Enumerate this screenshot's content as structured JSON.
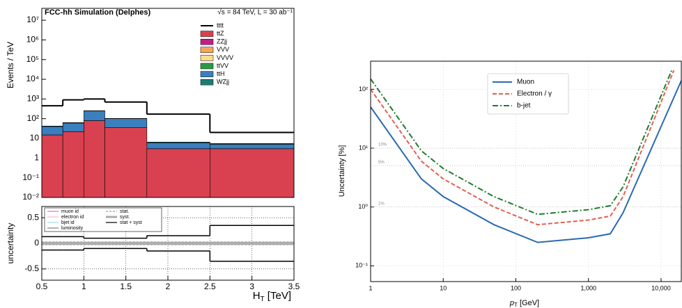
{
  "chart_data": [
    {
      "type": "histogram",
      "header_left": "FCC-hh Simulation (Delphes)",
      "header_right": "√s = 84 TeV, L = 30 ab⁻¹",
      "ylabel": "Events / TeV",
      "bins": [
        0.5,
        0.75,
        1,
        1.25,
        1.75,
        2.5,
        3.5
      ],
      "xlim": [
        0.5,
        3.5
      ],
      "ylog": true,
      "ylim": [
        0.01,
        40000000
      ],
      "yticks": [
        {
          "value": 0.01,
          "label": "10⁻²"
        },
        {
          "value": 0.1,
          "label": "10⁻¹"
        },
        1,
        10,
        {
          "value": 100,
          "label": "10²"
        },
        {
          "value": 1000,
          "label": "10³"
        },
        {
          "value": 10000,
          "label": "10⁴"
        },
        {
          "value": 100000,
          "label": "10⁵"
        },
        {
          "value": 1000000,
          "label": "10⁶"
        },
        {
          "value": 10000000,
          "label": "10⁷"
        }
      ],
      "stacked": true,
      "legend": "upper right",
      "series": [
        {
          "name": "tttt",
          "color": "#000000",
          "histtype": "step",
          "values": [
            450,
            900,
            1000,
            700,
            170,
            20
          ]
        },
        {
          "name": "ttZ",
          "color": "#d94150",
          "values": [
            15,
            22,
            80,
            35,
            3,
            3
          ]
        },
        {
          "name": "ZZjj",
          "color": "#c21f88",
          "values": [
            0,
            0,
            0,
            0,
            0,
            0
          ]
        },
        {
          "name": "VVV",
          "color": "#f8a55b",
          "values": [
            0,
            0,
            0,
            0,
            0,
            0
          ]
        },
        {
          "name": "VVVV",
          "color": "#fddc8f",
          "values": [
            0,
            0,
            0,
            0,
            0,
            0
          ]
        },
        {
          "name": "ttVV",
          "color": "#2e9a48",
          "values": [
            0,
            0,
            0,
            0,
            0,
            0
          ]
        },
        {
          "name": "ttH",
          "color": "#3a7fbe",
          "values": [
            25,
            38,
            170,
            65,
            3,
            2
          ]
        },
        {
          "name": "WZjj",
          "color": "#1a7f72",
          "values": [
            2,
            3,
            5,
            3,
            0.5,
            0.5
          ]
        }
      ]
    },
    {
      "type": "ratio",
      "ylabel": "uncertainty",
      "xlabel": "H",
      "xlabel_sub": "T",
      "xlabel_unit": " [TeV]",
      "bins": [
        0.5,
        0.75,
        1,
        1.25,
        1.75,
        2.5,
        3.5
      ],
      "xlim": [
        0.5,
        3.5
      ],
      "xticks": [
        0.5,
        1,
        1.5,
        2,
        2.5,
        3,
        3.5
      ],
      "ylim": [
        -0.72,
        0.72
      ],
      "yticks": [
        -0.5,
        0,
        0.5
      ],
      "grid": true,
      "legend": "upper left",
      "series": [
        {
          "name": "muon id",
          "color": "#e377c2",
          "histtype": "step",
          "high": [
            0.005,
            0.005,
            0.005,
            0.005,
            0.005,
            0.005
          ],
          "low": [
            -0.005,
            -0.005,
            -0.005,
            -0.005,
            -0.005,
            -0.005
          ]
        },
        {
          "name": "electron id",
          "color": "#f7b6d2",
          "histtype": "step",
          "high": [
            0.005,
            0.005,
            0.005,
            0.005,
            0.005,
            0.005
          ],
          "low": [
            -0.005,
            -0.005,
            -0.005,
            -0.005,
            -0.005,
            -0.005
          ]
        },
        {
          "name": "bjet id",
          "color": "#9edae5",
          "histtype": "step",
          "high": [
            0.01,
            0.01,
            0.01,
            0.01,
            0.01,
            0.01
          ],
          "low": [
            -0.01,
            -0.01,
            -0.01,
            -0.01,
            -0.01,
            -0.01
          ]
        },
        {
          "name": "luminosity",
          "color": "#7f7f7f",
          "histtype": "step",
          "high": [
            0.02,
            0.02,
            0.02,
            0.02,
            0.02,
            0.02
          ],
          "low": [
            -0.02,
            -0.02,
            -0.02,
            -0.02,
            -0.02,
            -0.02
          ]
        },
        {
          "name": "stat.",
          "color": "#999999",
          "histtype": "dashed",
          "high": [
            0.03,
            0.03,
            0.03,
            0.03,
            0.03,
            0.03
          ],
          "low": [
            -0.03,
            -0.03,
            -0.03,
            -0.03,
            -0.03,
            -0.03
          ]
        },
        {
          "name": "syst.",
          "color": "#aaaaaa",
          "histtype": "band",
          "high": [
            0.03,
            0.03,
            0.03,
            0.03,
            0.03,
            0.03
          ],
          "low": [
            -0.03,
            -0.03,
            -0.03,
            -0.03,
            -0.03,
            -0.03
          ]
        },
        {
          "name": "stat + syst",
          "color": "#000000",
          "histtype": "step",
          "high": [
            0.13,
            0.13,
            0.1,
            0.1,
            0.15,
            0.35
          ],
          "low": [
            -0.13,
            -0.13,
            -0.1,
            -0.1,
            -0.15,
            -0.35
          ]
        }
      ]
    },
    {
      "type": "line",
      "ylabel": "Uncertainty [%]",
      "xlabel": "p",
      "xlabel_sub": "T",
      "xlabel_unit": " [GeV]",
      "xlog": true,
      "ylog": true,
      "xlim": [
        1,
        19000
      ],
      "ylim": [
        0.054,
        300
      ],
      "xticks": [
        1,
        10,
        100,
        {
          "value": 1000,
          "label": "1,000"
        },
        {
          "value": 10000,
          "label": "10,000"
        }
      ],
      "yticks": [
        {
          "value": 0.1,
          "label": "10⁻¹"
        },
        {
          "value": 1,
          "label": "10⁰"
        },
        {
          "value": 10,
          "label": "10¹"
        },
        {
          "value": 100,
          "label": "10²"
        }
      ],
      "grid": true,
      "legend": "upper center",
      "annotations": [
        {
          "text": "10%",
          "y": 10
        },
        {
          "text": "5%",
          "y": 5
        },
        {
          "text": "1%",
          "y": 1
        }
      ],
      "series": [
        {
          "name": "Muon",
          "color": "#2a6ab0",
          "dash": "solid",
          "x": [
            1,
            5,
            10,
            50,
            200,
            1000,
            2000,
            3000,
            19000
          ],
          "values": [
            50,
            3,
            1.5,
            0.5,
            0.25,
            0.3,
            0.35,
            0.8,
            140
          ]
        },
        {
          "name": "Electron / γ",
          "color": "#e06050",
          "dash": "dashed",
          "x": [
            1,
            5,
            10,
            50,
            200,
            1000,
            2000,
            3000,
            15000
          ],
          "values": [
            100,
            6,
            3,
            1,
            0.5,
            0.6,
            0.7,
            1.5,
            210
          ]
        },
        {
          "name": "b-jet",
          "color": "#1f7a2e",
          "dash": "dashdot",
          "x": [
            1,
            5,
            10,
            50,
            200,
            1000,
            2000,
            3000,
            14000
          ],
          "values": [
            150,
            9,
            4.5,
            1.5,
            0.75,
            0.9,
            1.05,
            2.2,
            210
          ]
        }
      ]
    }
  ]
}
